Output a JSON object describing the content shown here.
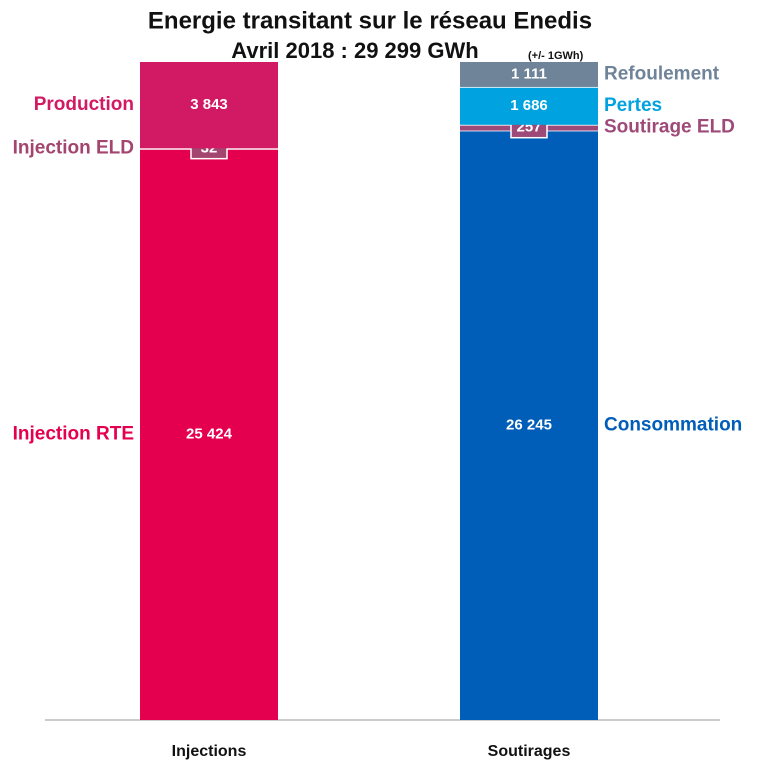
{
  "chart_data": {
    "type": "stacked_bar",
    "title": "Energie transitant sur le réseau Enedis",
    "subtitle": "Avril 2018 : 29 299 GWh",
    "note": "(+/- 1GWh)",
    "categories": [
      "Injections",
      "Soutirages"
    ],
    "series": [
      {
        "name": "Injection RTE",
        "color": "#e4004f",
        "values": [
          25424,
          null
        ],
        "value_labels": [
          "25 424",
          null
        ]
      },
      {
        "name": "Injection ELD",
        "color": "#a3456f",
        "values": [
          32,
          null
        ],
        "value_labels": [
          "32",
          null
        ]
      },
      {
        "name": "Production",
        "color": "#d11a63",
        "values": [
          3843,
          null
        ],
        "value_labels": [
          "3 843",
          null
        ]
      },
      {
        "name": "Consommation",
        "color": "#005eb8",
        "values": [
          null,
          26245
        ],
        "value_labels": [
          null,
          "26 245"
        ]
      },
      {
        "name": "Soutirage ELD",
        "color": "#9e4a78",
        "values": [
          null,
          257
        ],
        "value_labels": [
          null,
          "257"
        ]
      },
      {
        "name": "Pertes",
        "color": "#00a3e0",
        "values": [
          null,
          1686
        ],
        "value_labels": [
          null,
          "1 686"
        ]
      },
      {
        "name": "Refoulement",
        "color": "#6f8499",
        "values": [
          null,
          1111
        ],
        "value_labels": [
          null,
          "1 111"
        ]
      }
    ]
  }
}
